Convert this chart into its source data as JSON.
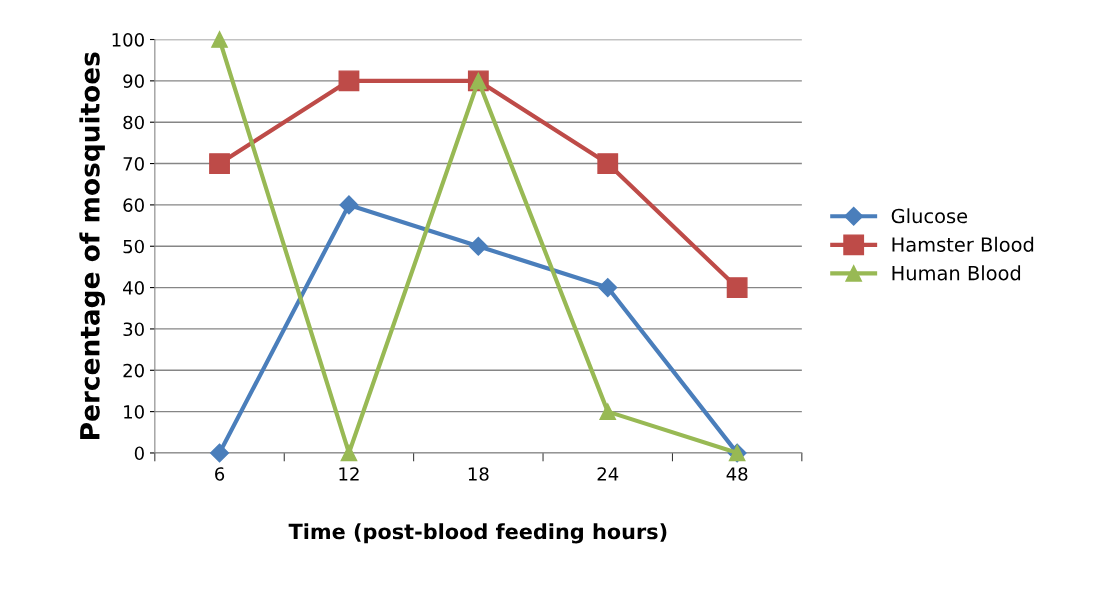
{
  "chart_data": {
    "type": "line",
    "xlabel": "Time (post-blood feeding hours)",
    "ylabel": "Percentage of mosquitoes",
    "categories": [
      "6",
      "12",
      "18",
      "24",
      "48"
    ],
    "series": [
      {
        "name": "Glucose",
        "color": "#4a7ebb",
        "marker": "diamond",
        "values": [
          0,
          60,
          50,
          40,
          0
        ]
      },
      {
        "name": "Hamster Blood",
        "color": "#be4b48",
        "marker": "square",
        "values": [
          70,
          90,
          90,
          70,
          40
        ]
      },
      {
        "name": "Human Blood",
        "color": "#98b954",
        "marker": "triangle",
        "values": [
          100,
          0,
          90,
          10,
          0
        ]
      }
    ],
    "ylim": [
      0,
      100
    ],
    "yticks": [
      0,
      10,
      20,
      30,
      40,
      50,
      60,
      70,
      80,
      90,
      100
    ],
    "grid": "y",
    "legend": "right",
    "line_style": "solid"
  }
}
